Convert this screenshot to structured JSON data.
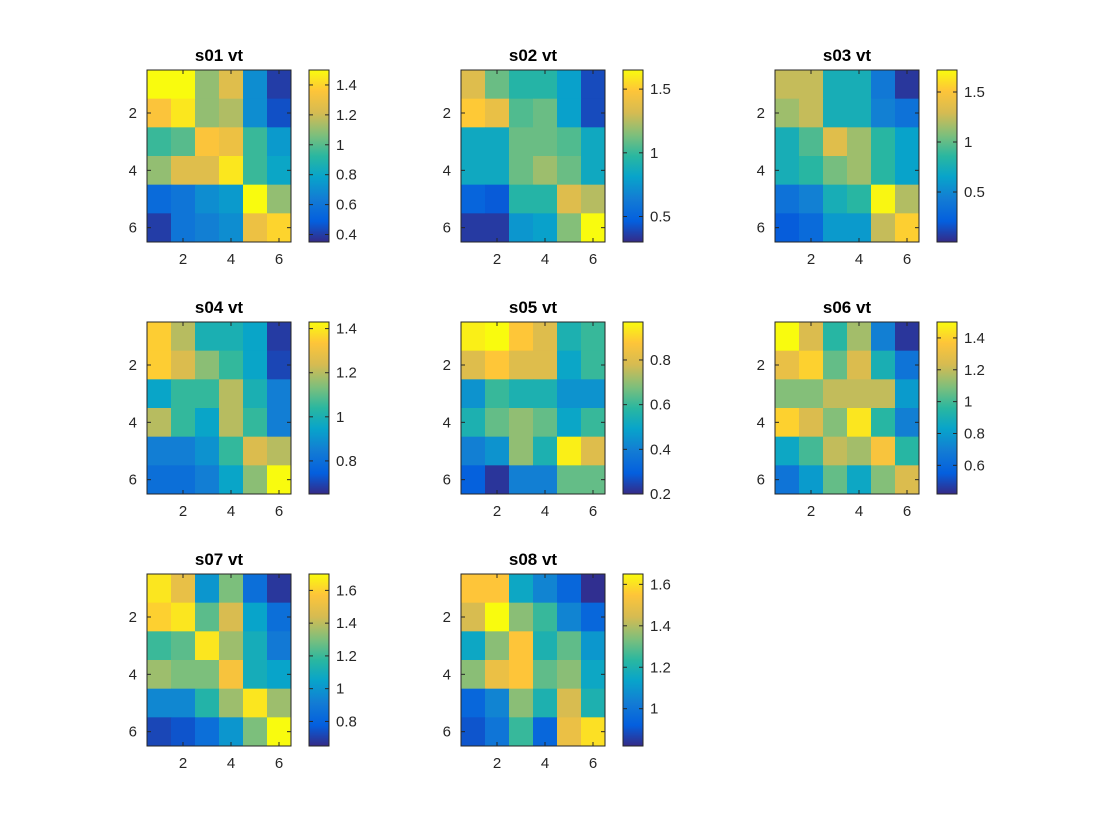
{
  "figure": {
    "colormap": "parula"
  },
  "chart_data": [
    {
      "type": "heatmap",
      "title": "s01 vt",
      "x_ticks": [
        2,
        4,
        6
      ],
      "y_ticks": [
        2,
        4,
        6
      ],
      "colorbar": {
        "clim": [
          0.35,
          1.5
        ],
        "ticks": [
          0.4,
          0.6,
          0.8,
          1,
          1.2,
          1.4
        ]
      },
      "values": [
        [
          1.5,
          1.5,
          1.1,
          1.25,
          0.7,
          0.4
        ],
        [
          1.35,
          1.45,
          1.1,
          1.15,
          0.7,
          0.45
        ],
        [
          0.95,
          1.0,
          1.35,
          1.3,
          0.95,
          0.75
        ],
        [
          1.1,
          1.25,
          1.25,
          1.45,
          0.95,
          0.8
        ],
        [
          0.55,
          0.6,
          0.7,
          0.75,
          1.5,
          1.1
        ],
        [
          0.4,
          0.6,
          0.65,
          0.7,
          1.3,
          1.4
        ]
      ]
    },
    {
      "type": "heatmap",
      "title": "s02 vt",
      "x_ticks": [
        2,
        4,
        6
      ],
      "y_ticks": [
        2,
        4,
        6
      ],
      "colorbar": {
        "clim": [
          0.3,
          1.65
        ],
        "ticks": [
          0.5,
          1,
          1.5
        ]
      },
      "values": [
        [
          1.35,
          1.1,
          0.95,
          0.95,
          0.8,
          0.4
        ],
        [
          1.5,
          1.4,
          1.05,
          1.1,
          0.8,
          0.4
        ],
        [
          0.85,
          0.85,
          1.1,
          1.1,
          1.05,
          0.85
        ],
        [
          0.85,
          0.85,
          1.1,
          1.2,
          1.1,
          0.85
        ],
        [
          0.5,
          0.45,
          0.95,
          0.95,
          1.35,
          1.25
        ],
        [
          0.35,
          0.35,
          0.75,
          0.8,
          1.15,
          1.65
        ]
      ]
    },
    {
      "type": "heatmap",
      "title": "s03 vt",
      "x_ticks": [
        2,
        4,
        6
      ],
      "y_ticks": [
        2,
        4,
        6
      ],
      "colorbar": {
        "clim": [
          0.0,
          1.72
        ],
        "ticks": [
          0.5,
          1,
          1.5
        ]
      },
      "values": [
        [
          1.25,
          1.25,
          0.75,
          0.75,
          0.4,
          0.05
        ],
        [
          1.15,
          1.25,
          0.75,
          0.75,
          0.45,
          0.35
        ],
        [
          0.75,
          0.95,
          1.35,
          1.15,
          0.85,
          0.65
        ],
        [
          0.75,
          0.85,
          1.05,
          1.15,
          0.85,
          0.65
        ],
        [
          0.35,
          0.45,
          0.75,
          0.85,
          1.7,
          1.2
        ],
        [
          0.2,
          0.3,
          0.6,
          0.6,
          1.25,
          1.55
        ]
      ]
    },
    {
      "type": "heatmap",
      "title": "s04 vt",
      "x_ticks": [
        2,
        4,
        6
      ],
      "y_ticks": [
        2,
        4,
        6
      ],
      "colorbar": {
        "clim": [
          0.65,
          1.43
        ],
        "ticks": [
          0.8,
          1,
          1.2,
          1.4
        ]
      },
      "values": [
        [
          1.35,
          1.2,
          1.0,
          1.0,
          0.95,
          0.68
        ],
        [
          1.35,
          1.25,
          1.15,
          1.05,
          0.95,
          0.7
        ],
        [
          0.95,
          1.05,
          1.05,
          1.2,
          1.0,
          0.85
        ],
        [
          1.2,
          1.05,
          0.95,
          1.2,
          1.05,
          0.85
        ],
        [
          0.85,
          0.85,
          0.9,
          1.05,
          1.25,
          1.2
        ],
        [
          0.8,
          0.8,
          0.85,
          0.95,
          1.15,
          1.43
        ]
      ]
    },
    {
      "type": "heatmap",
      "title": "s05 vt",
      "x_ticks": [
        2,
        4,
        6
      ],
      "y_ticks": [
        2,
        4,
        6
      ],
      "colorbar": {
        "clim": [
          0.2,
          0.97
        ],
        "ticks": [
          0.2,
          0.4,
          0.6,
          0.8
        ]
      },
      "values": [
        [
          0.95,
          0.97,
          0.88,
          0.8,
          0.55,
          0.6
        ],
        [
          0.8,
          0.88,
          0.8,
          0.8,
          0.5,
          0.6
        ],
        [
          0.45,
          0.6,
          0.55,
          0.55,
          0.45,
          0.45
        ],
        [
          0.55,
          0.65,
          0.7,
          0.65,
          0.5,
          0.6
        ],
        [
          0.4,
          0.45,
          0.7,
          0.55,
          0.95,
          0.8
        ],
        [
          0.3,
          0.22,
          0.4,
          0.4,
          0.65,
          0.65
        ]
      ]
    },
    {
      "type": "heatmap",
      "title": "s06 vt",
      "x_ticks": [
        2,
        4,
        6
      ],
      "y_ticks": [
        2,
        4,
        6
      ],
      "colorbar": {
        "clim": [
          0.42,
          1.5
        ],
        "ticks": [
          0.6,
          0.8,
          1,
          1.2,
          1.4
        ]
      },
      "values": [
        [
          1.5,
          1.25,
          0.95,
          1.15,
          0.7,
          0.45
        ],
        [
          1.3,
          1.4,
          1.05,
          1.25,
          0.9,
          0.65
        ],
        [
          1.1,
          1.1,
          1.2,
          1.2,
          1.2,
          0.8
        ],
        [
          1.4,
          1.25,
          1.1,
          1.45,
          0.95,
          0.7
        ],
        [
          0.85,
          1.0,
          1.2,
          1.15,
          1.35,
          0.95
        ],
        [
          0.65,
          0.8,
          1.05,
          0.85,
          1.1,
          1.25
        ]
      ]
    },
    {
      "type": "heatmap",
      "title": "s07 vt",
      "x_ticks": [
        2,
        4,
        6
      ],
      "y_ticks": [
        2,
        4,
        6
      ],
      "colorbar": {
        "clim": [
          0.65,
          1.7
        ],
        "ticks": [
          0.8,
          1,
          1.2,
          1.4,
          1.6
        ]
      },
      "values": [
        [
          1.65,
          1.5,
          1.0,
          1.3,
          0.85,
          0.68
        ],
        [
          1.6,
          1.65,
          1.25,
          1.45,
          1.05,
          0.85
        ],
        [
          1.2,
          1.25,
          1.65,
          1.35,
          1.1,
          0.9
        ],
        [
          1.35,
          1.3,
          1.3,
          1.55,
          1.1,
          1.05
        ],
        [
          0.95,
          0.95,
          1.15,
          1.35,
          1.65,
          1.35
        ],
        [
          0.72,
          0.75,
          0.85,
          1.0,
          1.3,
          1.7
        ]
      ]
    },
    {
      "type": "heatmap",
      "title": "s08 vt",
      "x_ticks": [
        2,
        4,
        6
      ],
      "y_ticks": [
        2,
        4,
        6
      ],
      "colorbar": {
        "clim": [
          0.82,
          1.65
        ],
        "ticks": [
          1,
          1.2,
          1.4,
          1.6
        ]
      },
      "values": [
        [
          1.55,
          1.55,
          1.15,
          1.05,
          0.95,
          0.83
        ],
        [
          1.45,
          1.65,
          1.35,
          1.25,
          1.05,
          0.95
        ],
        [
          1.15,
          1.35,
          1.55,
          1.2,
          1.3,
          1.1
        ],
        [
          1.35,
          1.5,
          1.55,
          1.3,
          1.35,
          1.15
        ],
        [
          0.95,
          1.05,
          1.35,
          1.2,
          1.45,
          1.2
        ],
        [
          0.9,
          1.0,
          1.25,
          0.95,
          1.5,
          1.6
        ]
      ]
    }
  ]
}
